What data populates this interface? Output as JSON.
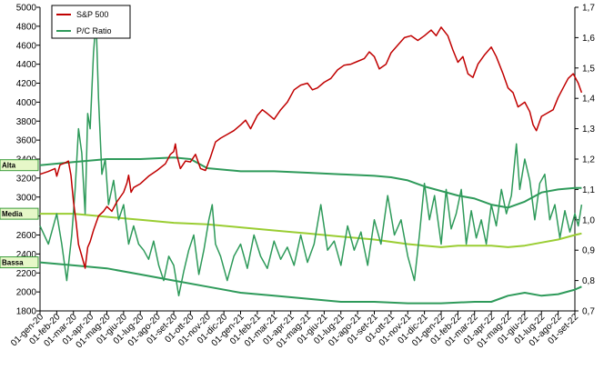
{
  "chart_data": {
    "type": "line",
    "title": "",
    "legend": {
      "placement": "top-left",
      "entries": [
        {
          "label": "S&P 500",
          "color": "#c00000"
        },
        {
          "label": "P/C Ratio",
          "color": "#2e9a5a"
        }
      ]
    },
    "y_left": {
      "min": 1800,
      "max": 5000,
      "ticks": [
        "1800",
        "2000",
        "2200",
        "2400",
        "2600",
        "2800",
        "3000",
        "3200",
        "3400",
        "3600",
        "3800",
        "4000",
        "4200",
        "4400",
        "4600",
        "4800",
        "5000"
      ]
    },
    "y_right": {
      "min": 0.7,
      "max": 1.7,
      "ticks": [
        "0,7",
        "0,8",
        "0,9",
        "1,0",
        "1,1",
        "1,2",
        "1,3",
        "1,4",
        "1,5",
        "1,6",
        "1,7"
      ]
    },
    "x_ticks": [
      "01-gen-20",
      "01-feb-20",
      "01-mar-20",
      "01-apr-20",
      "01-mag-20",
      "01-giu-20",
      "01-lug-20",
      "01-ago-20",
      "01-set-20",
      "01-ott-20",
      "01-nov-20",
      "01-dic-20",
      "01-gen-21",
      "01-feb-21",
      "01-mar-21",
      "01-apr-21",
      "01-mag-21",
      "01-giu-21",
      "01-lug-21",
      "01-ago-21",
      "01-set-21",
      "01-ott-21",
      "01-nov-21",
      "01-dic-21",
      "01-gen-22",
      "01-feb-22",
      "01-mar-22",
      "01-apr-22",
      "01-mag-22",
      "01-giu-22",
      "01-lug-22",
      "01-ago-22",
      "01-set-22"
    ],
    "band_labels": {
      "upper": "Alta",
      "middle": "Media",
      "lower": "Bassa"
    },
    "grid": false,
    "series": [
      {
        "name": "S&P 500",
        "axis": "left",
        "color": "#c00000",
        "points": [
          [
            0,
            3240
          ],
          [
            0.5,
            3270
          ],
          [
            0.9,
            3300
          ],
          [
            1.0,
            3220
          ],
          [
            1.2,
            3340
          ],
          [
            1.5,
            3360
          ],
          [
            1.7,
            3380
          ],
          [
            1.85,
            3230
          ],
          [
            2.0,
            2950
          ],
          [
            2.15,
            2750
          ],
          [
            2.3,
            2500
          ],
          [
            2.5,
            2380
          ],
          [
            2.7,
            2250
          ],
          [
            2.85,
            2470
          ],
          [
            3.0,
            2530
          ],
          [
            3.2,
            2650
          ],
          [
            3.5,
            2800
          ],
          [
            3.8,
            2850
          ],
          [
            4.0,
            2900
          ],
          [
            4.3,
            2850
          ],
          [
            4.6,
            2950
          ],
          [
            5.0,
            3050
          ],
          [
            5.2,
            3150
          ],
          [
            5.3,
            3230
          ],
          [
            5.45,
            3050
          ],
          [
            5.6,
            3100
          ],
          [
            6.0,
            3140
          ],
          [
            6.5,
            3220
          ],
          [
            7.0,
            3280
          ],
          [
            7.5,
            3350
          ],
          [
            7.8,
            3450
          ],
          [
            8.0,
            3480
          ],
          [
            8.1,
            3560
          ],
          [
            8.2,
            3430
          ],
          [
            8.4,
            3300
          ],
          [
            8.7,
            3380
          ],
          [
            9.0,
            3370
          ],
          [
            9.3,
            3450
          ],
          [
            9.6,
            3300
          ],
          [
            9.9,
            3280
          ],
          [
            10.2,
            3420
          ],
          [
            10.5,
            3580
          ],
          [
            10.8,
            3620
          ],
          [
            11.2,
            3660
          ],
          [
            11.6,
            3700
          ],
          [
            12.0,
            3760
          ],
          [
            12.3,
            3810
          ],
          [
            12.6,
            3720
          ],
          [
            13.0,
            3860
          ],
          [
            13.3,
            3920
          ],
          [
            13.6,
            3880
          ],
          [
            14.0,
            3820
          ],
          [
            14.4,
            3920
          ],
          [
            14.8,
            4000
          ],
          [
            15.2,
            4130
          ],
          [
            15.6,
            4180
          ],
          [
            16.0,
            4200
          ],
          [
            16.3,
            4130
          ],
          [
            16.6,
            4150
          ],
          [
            17.0,
            4210
          ],
          [
            17.4,
            4250
          ],
          [
            17.8,
            4340
          ],
          [
            18.2,
            4390
          ],
          [
            18.6,
            4400
          ],
          [
            19.0,
            4430
          ],
          [
            19.4,
            4460
          ],
          [
            19.7,
            4530
          ],
          [
            20.0,
            4480
          ],
          [
            20.3,
            4350
          ],
          [
            20.7,
            4400
          ],
          [
            21.0,
            4520
          ],
          [
            21.4,
            4600
          ],
          [
            21.8,
            4680
          ],
          [
            22.2,
            4700
          ],
          [
            22.6,
            4650
          ],
          [
            23.0,
            4700
          ],
          [
            23.4,
            4760
          ],
          [
            23.7,
            4700
          ],
          [
            24.0,
            4790
          ],
          [
            24.4,
            4700
          ],
          [
            24.7,
            4550
          ],
          [
            25.0,
            4420
          ],
          [
            25.3,
            4480
          ],
          [
            25.6,
            4300
          ],
          [
            25.9,
            4260
          ],
          [
            26.2,
            4400
          ],
          [
            26.6,
            4500
          ],
          [
            27.0,
            4580
          ],
          [
            27.3,
            4480
          ],
          [
            27.7,
            4300
          ],
          [
            28.0,
            4150
          ],
          [
            28.3,
            4100
          ],
          [
            28.6,
            3950
          ],
          [
            29.0,
            4000
          ],
          [
            29.3,
            3900
          ],
          [
            29.5,
            3760
          ],
          [
            29.7,
            3700
          ],
          [
            30.0,
            3850
          ],
          [
            30.3,
            3880
          ],
          [
            30.7,
            3920
          ],
          [
            31.0,
            4050
          ],
          [
            31.3,
            4150
          ],
          [
            31.6,
            4250
          ],
          [
            31.9,
            4300
          ],
          [
            32.2,
            4200
          ],
          [
            32.4,
            4100
          ]
        ]
      },
      {
        "name": "P/C Ratio",
        "axis": "right",
        "color": "#2e9a5a",
        "points": [
          [
            0,
            0.98
          ],
          [
            0.5,
            0.92
          ],
          [
            1.0,
            1.02
          ],
          [
            1.3,
            0.92
          ],
          [
            1.6,
            0.8
          ],
          [
            1.9,
            0.95
          ],
          [
            2.1,
            1.1
          ],
          [
            2.3,
            1.3
          ],
          [
            2.5,
            1.22
          ],
          [
            2.7,
            1.02
          ],
          [
            2.85,
            1.35
          ],
          [
            3.0,
            1.3
          ],
          [
            3.2,
            1.55
          ],
          [
            3.35,
            1.66
          ],
          [
            3.5,
            1.4
          ],
          [
            3.7,
            1.15
          ],
          [
            3.9,
            1.2
          ],
          [
            4.1,
            1.05
          ],
          [
            4.4,
            1.13
          ],
          [
            4.7,
            1.0
          ],
          [
            5.0,
            1.05
          ],
          [
            5.3,
            0.92
          ],
          [
            5.6,
            0.98
          ],
          [
            5.9,
            0.92
          ],
          [
            6.2,
            0.9
          ],
          [
            6.5,
            0.87
          ],
          [
            6.8,
            0.93
          ],
          [
            7.1,
            0.85
          ],
          [
            7.4,
            0.8
          ],
          [
            7.7,
            0.88
          ],
          [
            8.0,
            0.85
          ],
          [
            8.3,
            0.75
          ],
          [
            8.6,
            0.83
          ],
          [
            8.9,
            0.9
          ],
          [
            9.2,
            0.95
          ],
          [
            9.5,
            0.82
          ],
          [
            9.8,
            0.9
          ],
          [
            10.1,
            1.0
          ],
          [
            10.3,
            1.05
          ],
          [
            10.5,
            0.92
          ],
          [
            10.8,
            0.88
          ],
          [
            11.2,
            0.8
          ],
          [
            11.6,
            0.88
          ],
          [
            12.0,
            0.92
          ],
          [
            12.4,
            0.84
          ],
          [
            12.8,
            0.95
          ],
          [
            13.2,
            0.88
          ],
          [
            13.6,
            0.84
          ],
          [
            14.0,
            0.93
          ],
          [
            14.4,
            0.87
          ],
          [
            14.8,
            0.91
          ],
          [
            15.2,
            0.85
          ],
          [
            15.6,
            0.95
          ],
          [
            16.0,
            0.86
          ],
          [
            16.4,
            0.92
          ],
          [
            16.8,
            1.05
          ],
          [
            17.2,
            0.9
          ],
          [
            17.6,
            0.93
          ],
          [
            18.0,
            0.85
          ],
          [
            18.4,
            0.98
          ],
          [
            18.8,
            0.9
          ],
          [
            19.2,
            0.96
          ],
          [
            19.6,
            0.85
          ],
          [
            20.0,
            1.0
          ],
          [
            20.4,
            0.92
          ],
          [
            20.8,
            1.08
          ],
          [
            21.2,
            0.95
          ],
          [
            21.6,
            1.0
          ],
          [
            22.0,
            0.88
          ],
          [
            22.4,
            0.8
          ],
          [
            22.7,
            0.95
          ],
          [
            23.0,
            1.12
          ],
          [
            23.3,
            1.0
          ],
          [
            23.6,
            1.08
          ],
          [
            24.0,
            0.92
          ],
          [
            24.3,
            1.1
          ],
          [
            24.6,
            0.97
          ],
          [
            24.9,
            1.02
          ],
          [
            25.2,
            1.1
          ],
          [
            25.5,
            0.92
          ],
          [
            25.8,
            1.03
          ],
          [
            26.1,
            0.94
          ],
          [
            26.4,
            1.0
          ],
          [
            26.7,
            0.92
          ],
          [
            27.0,
            1.05
          ],
          [
            27.3,
            0.98
          ],
          [
            27.6,
            1.1
          ],
          [
            27.9,
            1.02
          ],
          [
            28.2,
            1.08
          ],
          [
            28.5,
            1.25
          ],
          [
            28.7,
            1.1
          ],
          [
            29.0,
            1.2
          ],
          [
            29.3,
            1.13
          ],
          [
            29.6,
            1.0
          ],
          [
            29.9,
            1.12
          ],
          [
            30.2,
            1.15
          ],
          [
            30.5,
            1.0
          ],
          [
            30.8,
            1.05
          ],
          [
            31.1,
            0.94
          ],
          [
            31.4,
            1.03
          ],
          [
            31.7,
            0.96
          ],
          [
            32.0,
            1.02
          ],
          [
            32.2,
            0.98
          ],
          [
            32.4,
            1.05
          ]
        ]
      },
      {
        "name": "",
        "axis": "right",
        "color": "#2e9a5a",
        "role": "upper-band",
        "points": [
          [
            0,
            1.18
          ],
          [
            2,
            1.19
          ],
          [
            4,
            1.2
          ],
          [
            6,
            1.2
          ],
          [
            8,
            1.205
          ],
          [
            9,
            1.2
          ],
          [
            10,
            1.17
          ],
          [
            12,
            1.16
          ],
          [
            14,
            1.16
          ],
          [
            16,
            1.155
          ],
          [
            18,
            1.15
          ],
          [
            20,
            1.145
          ],
          [
            21,
            1.14
          ],
          [
            22,
            1.13
          ],
          [
            23,
            1.11
          ],
          [
            24,
            1.095
          ],
          [
            25,
            1.08
          ],
          [
            26,
            1.07
          ],
          [
            27,
            1.05
          ],
          [
            28,
            1.04
          ],
          [
            29,
            1.06
          ],
          [
            30,
            1.09
          ],
          [
            31,
            1.1
          ],
          [
            32,
            1.105
          ],
          [
            32.4,
            1.105
          ]
        ]
      },
      {
        "name": "",
        "axis": "right",
        "color": "#9acd32",
        "role": "middle-band",
        "points": [
          [
            0,
            1.02
          ],
          [
            2,
            1.02
          ],
          [
            4,
            1.01
          ],
          [
            6,
            1.0
          ],
          [
            8,
            0.99
          ],
          [
            10,
            0.985
          ],
          [
            12,
            0.975
          ],
          [
            14,
            0.965
          ],
          [
            16,
            0.955
          ],
          [
            18,
            0.945
          ],
          [
            20,
            0.935
          ],
          [
            22,
            0.92
          ],
          [
            23,
            0.915
          ],
          [
            24,
            0.91
          ],
          [
            25,
            0.915
          ],
          [
            26,
            0.915
          ],
          [
            27,
            0.915
          ],
          [
            28,
            0.91
          ],
          [
            29,
            0.915
          ],
          [
            30,
            0.925
          ],
          [
            31,
            0.935
          ],
          [
            32,
            0.95
          ],
          [
            32.4,
            0.955
          ]
        ]
      },
      {
        "name": "",
        "axis": "right",
        "color": "#2e9a5a",
        "role": "lower-band",
        "points": [
          [
            0,
            0.86
          ],
          [
            2,
            0.85
          ],
          [
            4,
            0.84
          ],
          [
            6,
            0.82
          ],
          [
            8,
            0.8
          ],
          [
            10,
            0.78
          ],
          [
            12,
            0.76
          ],
          [
            14,
            0.75
          ],
          [
            16,
            0.74
          ],
          [
            18,
            0.73
          ],
          [
            20,
            0.73
          ],
          [
            22,
            0.725
          ],
          [
            24,
            0.725
          ],
          [
            26,
            0.73
          ],
          [
            27,
            0.73
          ],
          [
            28,
            0.75
          ],
          [
            29,
            0.76
          ],
          [
            30,
            0.75
          ],
          [
            31,
            0.755
          ],
          [
            32,
            0.77
          ],
          [
            32.4,
            0.78
          ]
        ]
      }
    ]
  }
}
